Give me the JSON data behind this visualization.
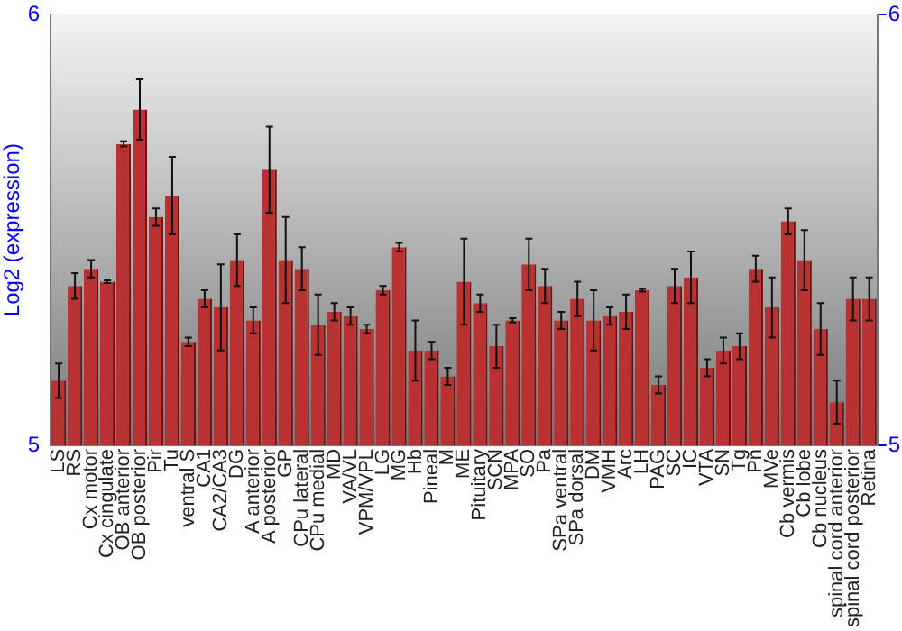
{
  "chart_data": {
    "type": "bar",
    "ylabel": "Log2 (expression)",
    "categories": [
      "LS",
      "RS",
      "Cx motor",
      "Cx cingulate",
      "OB anterior",
      "OB posterior",
      "Pir",
      "Tu",
      "ventral S",
      "CA1",
      "CA2/CA3",
      "DG",
      "A anterior",
      "A posterior",
      "GP",
      "CPu lateral",
      "CPu medial",
      "MD",
      "VA/VL",
      "VPM/VPL",
      "LG",
      "MG",
      "Hb",
      "Pineal",
      "M",
      "ME",
      "Pituitary",
      "SCN",
      "MPA",
      "SO",
      "Pa",
      "SPa ventral",
      "SPa dorsal",
      "DM",
      "VMH",
      "Arc",
      "LH",
      "PAG",
      "SC",
      "IC",
      "VTA",
      "SN",
      "Tg",
      "Pn",
      "MVe",
      "Cb vermis",
      "Cb lobe",
      "Cb nucleus",
      "spinal cord anterior",
      "spinal cord posterior",
      "Retina"
    ],
    "values": [
      5.15,
      5.37,
      5.41,
      5.38,
      5.7,
      5.78,
      5.53,
      5.58,
      5.24,
      5.34,
      5.32,
      5.43,
      5.29,
      5.64,
      5.43,
      5.41,
      5.28,
      5.31,
      5.3,
      5.27,
      5.36,
      5.46,
      5.22,
      5.22,
      5.16,
      5.38,
      5.33,
      5.23,
      5.29,
      5.42,
      5.37,
      5.29,
      5.34,
      5.29,
      5.3,
      5.31,
      5.36,
      5.14,
      5.37,
      5.39,
      5.18,
      5.22,
      5.23,
      5.41,
      5.32,
      5.52,
      5.43,
      5.27,
      5.1,
      5.34,
      5.34
    ],
    "errors": [
      0.04,
      0.03,
      0.02,
      0.003,
      0.006,
      0.07,
      0.02,
      0.09,
      0.01,
      0.02,
      0.1,
      0.06,
      0.03,
      0.1,
      0.1,
      0.05,
      0.07,
      0.02,
      0.02,
      0.01,
      0.01,
      0.01,
      0.07,
      0.02,
      0.02,
      0.1,
      0.02,
      0.05,
      0.005,
      0.06,
      0.04,
      0.02,
      0.04,
      0.07,
      0.02,
      0.04,
      0.003,
      0.02,
      0.04,
      0.06,
      0.02,
      0.03,
      0.03,
      0.03,
      0.07,
      0.03,
      0.07,
      0.06,
      0.05,
      0.05,
      0.05
    ],
    "color": "#b83232",
    "ylim": [
      5,
      6
    ],
    "yticks": [
      5,
      6
    ],
    "y2lim": [
      5,
      6
    ],
    "y2ticks": [
      5,
      6
    ],
    "grid": false,
    "legend": false
  }
}
